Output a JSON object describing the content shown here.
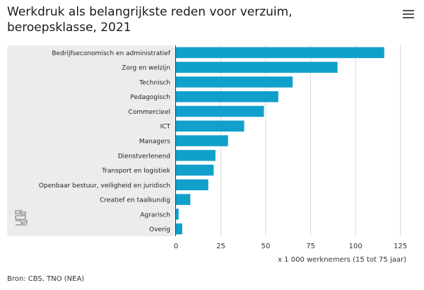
{
  "header": {
    "title_line1": "Werkdruk als belangrijkste reden voor verzuim,",
    "title_line2": "beroepsklasse, 2021",
    "menu_icon": "hamburger-menu-icon"
  },
  "chart_data": {
    "type": "bar",
    "orientation": "horizontal",
    "categories": [
      "Bedrijfseconomisch en administratief",
      "Zorg en welzijn",
      "Technisch",
      "Pedagogisch",
      "Commercieel",
      "ICT",
      "Managers",
      "Dienstverlenend",
      "Transport en logistiek",
      "Openbaar bestuur, veiligheid en juridisch",
      "Creatief en taalkundig",
      "Agrarisch",
      "Overig"
    ],
    "values": [
      116,
      90,
      65,
      57,
      49,
      38,
      29,
      22,
      21,
      18,
      8,
      1.5,
      3.5
    ],
    "xlabel": "x 1 000 werknemers (15 tot 75 jaar)",
    "xlim": [
      0,
      135
    ],
    "xticks": [
      0,
      25,
      50,
      75,
      100,
      125
    ],
    "grid": true,
    "legend": "none",
    "colors": {
      "bar": "#11a0cc",
      "label_panel": "#ececec",
      "grid": "#d9d9d9"
    }
  },
  "footer": {
    "source": "Bron: CBS, TNO (NEA)"
  },
  "logo": {
    "name": "cbs-logo-icon"
  }
}
